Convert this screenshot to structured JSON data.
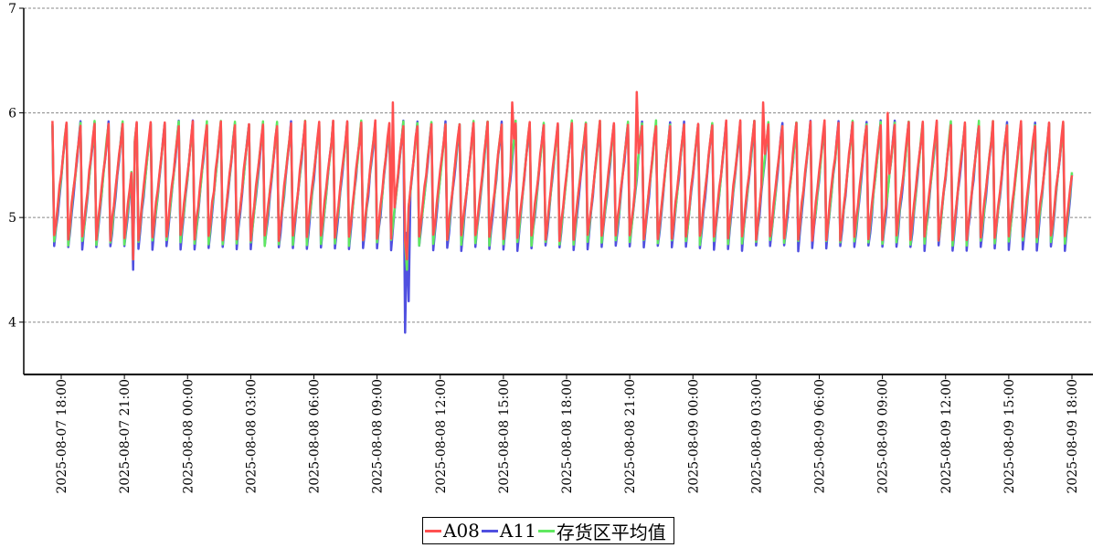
{
  "chart_data": {
    "type": "line",
    "title": "",
    "xlabel": "",
    "ylabel": "",
    "ylim": [
      3.5,
      7
    ],
    "yticks": [
      "4",
      "5",
      "6",
      "7"
    ],
    "grid": "horizontal dashed",
    "legend_position": "bottom-center",
    "x_tick_labels": [
      "2025-08-07 18:00",
      "2025-08-07 21:00",
      "2025-08-08 00:00",
      "2025-08-08 03:00",
      "2025-08-08 06:00",
      "2025-08-08 09:00",
      "2025-08-08 12:00",
      "2025-08-08 15:00",
      "2025-08-08 18:00",
      "2025-08-08 21:00",
      "2025-08-09 00:00",
      "2025-08-09 03:00",
      "2025-08-09 06:00",
      "2025-08-09 09:00",
      "2025-08-09 12:00",
      "2025-08-09 15:00",
      "2025-08-09 18:00"
    ],
    "x_range": [
      "2025-08-07 17:35",
      "2025-08-09 18:00"
    ],
    "series": [
      {
        "name": "A08",
        "color": "#ff5050",
        "pattern": "sawtooth, period ~40 min",
        "typical_min": 4.8,
        "typical_max": 5.9,
        "peaks": [
          {
            "x": "2025-08-08 09:45",
            "y": 6.1
          },
          {
            "x": "2025-08-08 15:25",
            "y": 6.1
          },
          {
            "x": "2025-08-08 21:20",
            "y": 6.2
          },
          {
            "x": "2025-08-09 03:20",
            "y": 6.1
          },
          {
            "x": "2025-08-09 09:15",
            "y": 6.0
          }
        ],
        "dips": [
          {
            "x": "2025-08-07 21:25",
            "y": 4.6
          },
          {
            "x": "2025-08-08 10:25",
            "y": 4.6
          }
        ]
      },
      {
        "name": "A11",
        "color": "#5050e0",
        "pattern": "sawtooth, period ~40 min",
        "typical_min": 4.7,
        "typical_max": 5.9,
        "dips": [
          {
            "x": "2025-08-07 21:25",
            "y": 4.5
          },
          {
            "x": "2025-08-08 10:20",
            "y": 3.9
          },
          {
            "x": "2025-08-08 10:30",
            "y": 4.2
          }
        ]
      },
      {
        "name": "存货区平均值",
        "color": "#60e860",
        "pattern": "sawtooth, period ~40 min",
        "typical_min": 4.75,
        "typical_max": 5.9,
        "dips": [
          {
            "x": "2025-08-07 21:25",
            "y": 4.6
          },
          {
            "x": "2025-08-08 10:25",
            "y": 4.5
          }
        ]
      }
    ]
  }
}
